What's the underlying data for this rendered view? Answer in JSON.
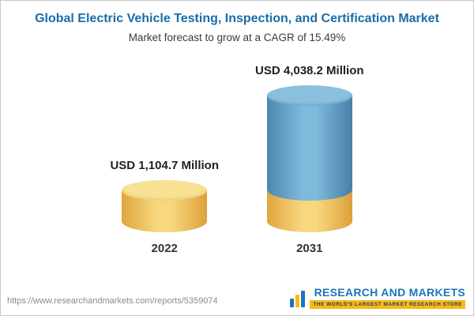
{
  "header": {
    "title": "Global Electric Vehicle Testing, Inspection, and Certification Market",
    "subtitle": "Market forecast to grow at a CAGR of 15.49%"
  },
  "chart_data": {
    "type": "bar",
    "categories": [
      "2022",
      "2031"
    ],
    "values": [
      1104.7,
      4038.2
    ],
    "labels": [
      "USD 1,104.7 Million",
      "USD 4,038.2 Million"
    ],
    "title": "Global Electric Vehicle Testing, Inspection, and Certification Market",
    "subtitle": "Market forecast to grow at a CAGR of 15.49%",
    "unit": "USD Million",
    "cagr": "15.49%",
    "xlabel": "",
    "ylabel": "",
    "legend": "none",
    "grid": false,
    "bar_style": "3d-cylinder",
    "colors": {
      "bar_2022": "#f2c85b",
      "bar_2031": "#5b9bc8",
      "bar_2031_base": "#f2c85b",
      "title": "#1b6ca8"
    }
  },
  "footer": {
    "url": "https://www.researchandmarkets.com/reports/5359074",
    "logo_icon": "bars-icon",
    "logo_text": "RESEARCH AND MARKETS",
    "logo_tagline": "THE WORLD'S LARGEST MARKET RESEARCH STORE"
  }
}
